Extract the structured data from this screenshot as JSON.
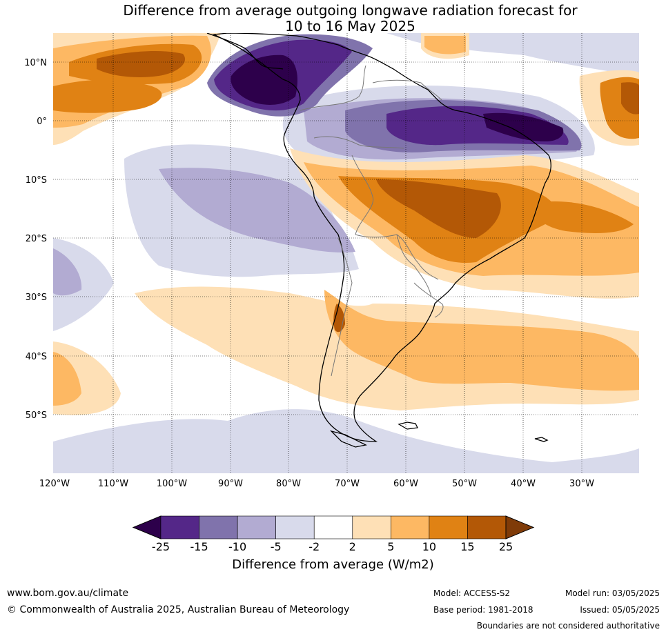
{
  "title_line1": "Difference from average outgoing longwave radiation forecast for",
  "title_line2": "10 to 16 May 2025",
  "lat_labels": [
    "10°N",
    "0°",
    "10°S",
    "20°S",
    "30°S",
    "40°S",
    "50°S"
  ],
  "lon_labels": [
    "120°W",
    "110°W",
    "100°W",
    "90°W",
    "80°W",
    "70°W",
    "60°W",
    "50°W",
    "40°W",
    "30°W"
  ],
  "colorbar": {
    "ticks": [
      "-25",
      "-15",
      "-10",
      "-5",
      "-2",
      "2",
      "5",
      "10",
      "15",
      "25"
    ],
    "colors": [
      "#2d004b",
      "#542788",
      "#8073ac",
      "#b2abd2",
      "#d8daeb",
      "#ffffff",
      "#fee0b6",
      "#fdb863",
      "#e08214",
      "#b35806",
      "#7f3b08"
    ],
    "title": "Difference from average (W/m2)"
  },
  "footer": {
    "website": "www.bom.gov.au/climate",
    "copyright": "© Commonwealth of Australia 2025, Australian Bureau of Meteorology",
    "model": "Model: ACCESS-S2",
    "base_period": "Base period: 1981-2018",
    "model_run": "Model run: 03/05/2025",
    "issued": "Issued: 05/05/2025",
    "disclaimer": "Boundaries are not considered authoritative"
  }
}
